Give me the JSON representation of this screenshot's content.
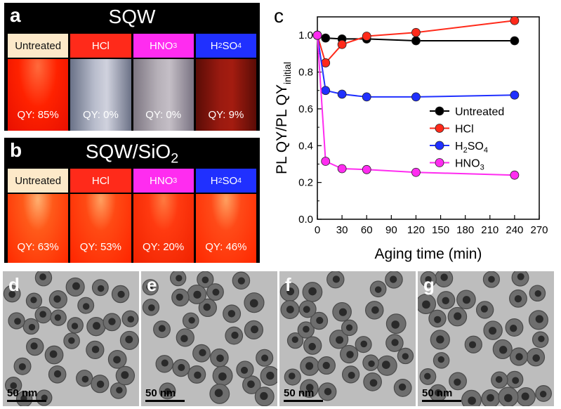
{
  "panel_a": {
    "letter": "a",
    "title": "SQW",
    "labels": [
      "Untreated",
      "HCl",
      "HNO",
      "H",
      "SO"
    ],
    "qy": [
      "QY: 85%",
      "QY: 0%",
      "QY: 0%",
      "QY: 9%"
    ]
  },
  "panel_b": {
    "letter": "b",
    "title": "SQW/SiO",
    "title_sub": "2",
    "labels": [
      "Untreated",
      "HCl",
      "HNO",
      "H",
      "SO"
    ],
    "qy": [
      "QY: 63%",
      "QY: 53%",
      "QY: 20%",
      "QY: 46%"
    ]
  },
  "subscripts": {
    "three": "3",
    "two": "2",
    "four": "4"
  },
  "colors": {
    "red": "#ff2a1a",
    "magenta": "#ff2cf0",
    "blue": "#2030ff",
    "black": "#000000",
    "untreated_bg": "#fde9c9"
  },
  "tem": [
    {
      "letter": "d",
      "scale": "50 nm"
    },
    {
      "letter": "e",
      "scale": "50 nm"
    },
    {
      "letter": "f",
      "scale": "50 nm"
    },
    {
      "letter": "g",
      "scale": "50 nm"
    }
  ],
  "chart_data": {
    "type": "line",
    "panel_letter": "c",
    "xlabel": "Aging time (min)",
    "ylabel_main": "PL QY/PL QY",
    "ylabel_sub": "initial",
    "xlim": [
      0,
      270
    ],
    "ylim": [
      0.0,
      1.1
    ],
    "xticks": [
      0,
      30,
      60,
      90,
      120,
      150,
      180,
      210,
      240,
      270
    ],
    "yticks": [
      "0.0",
      "0.2",
      "0.4",
      "0.6",
      "0.8",
      "1.0"
    ],
    "ytick_values": [
      0.0,
      0.2,
      0.4,
      0.6,
      0.8,
      1.0
    ],
    "legend_position": "right",
    "series": [
      {
        "name": "Untreated",
        "legend_main": "Untreated",
        "legend_sub": "",
        "legend_tail": "",
        "color": "#000000",
        "x": [
          0,
          10,
          30,
          60,
          120,
          240
        ],
        "y": [
          1.0,
          0.985,
          0.98,
          0.98,
          0.97,
          0.97
        ]
      },
      {
        "name": "HCl",
        "legend_main": "HCl",
        "legend_sub": "",
        "legend_tail": "",
        "color": "#ff2a1a",
        "x": [
          0,
          10,
          30,
          60,
          120,
          240
        ],
        "y": [
          1.0,
          0.85,
          0.95,
          0.995,
          1.015,
          1.08
        ]
      },
      {
        "name": "H2SO4",
        "legend_main": "H",
        "legend_sub": "2",
        "legend_tail": "SO4",
        "color": "#2030ff",
        "x": [
          0,
          10,
          30,
          60,
          120,
          240
        ],
        "y": [
          1.0,
          0.7,
          0.68,
          0.665,
          0.665,
          0.675
        ]
      },
      {
        "name": "HNO3",
        "legend_main": "HNO",
        "legend_sub": "3",
        "legend_tail": "",
        "color": "#ff2cf0",
        "x": [
          0,
          10,
          30,
          60,
          120,
          240
        ],
        "y": [
          1.0,
          0.315,
          0.275,
          0.27,
          0.255,
          0.24
        ]
      }
    ]
  }
}
